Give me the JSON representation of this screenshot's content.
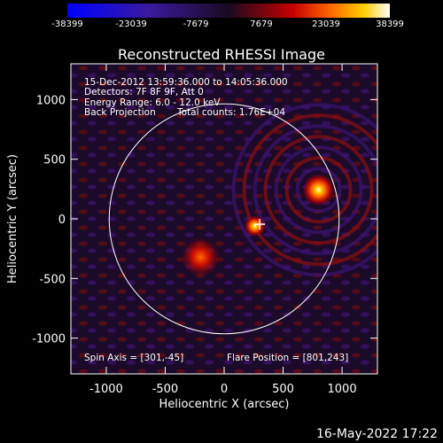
{
  "colorbar": {
    "ticks": [
      "-38399",
      "-23039",
      "-7679",
      "7679",
      "23039",
      "38399"
    ]
  },
  "chart_data": {
    "type": "heatmap",
    "title": "Reconstructed RHESSI Image",
    "xlabel": "Heliocentric X (arcsec)",
    "ylabel": "Heliocentric Y (arcsec)",
    "xlim": [
      -1300,
      1300
    ],
    "ylim": [
      -1300,
      1300
    ],
    "xticks": [
      -1000,
      -500,
      0,
      500,
      1000
    ],
    "yticks": [
      -1000,
      -500,
      0,
      500,
      1000
    ],
    "color_scale": [
      -38399,
      38399
    ],
    "solar_limb_radius_arcsec": 975,
    "flare_position": [
      801,
      243
    ],
    "spin_axis": [
      301,
      -45
    ],
    "sources": [
      {
        "x": 801,
        "y": 243,
        "intensity": 38399
      },
      {
        "x": 260,
        "y": -60,
        "intensity": 30000
      },
      {
        "x": -200,
        "y": -320,
        "intensity": 20000
      }
    ],
    "annotations": {
      "time": "15-Dec-2012 13:59:36.000 to 14:05:36.000",
      "detectors": "Detectors: 7F 8F 9F, Att 0",
      "energy": "Energy Range: 6.0 - 12.0 keV",
      "method": "Back Projection",
      "counts": "Total counts: 1.76E+04",
      "spin_axis_label": "Spin Axis = [301,-45]",
      "flare_position_label": "Flare Position = [801,243]"
    }
  },
  "footer": {
    "date": "16-May-2022 17:22"
  }
}
